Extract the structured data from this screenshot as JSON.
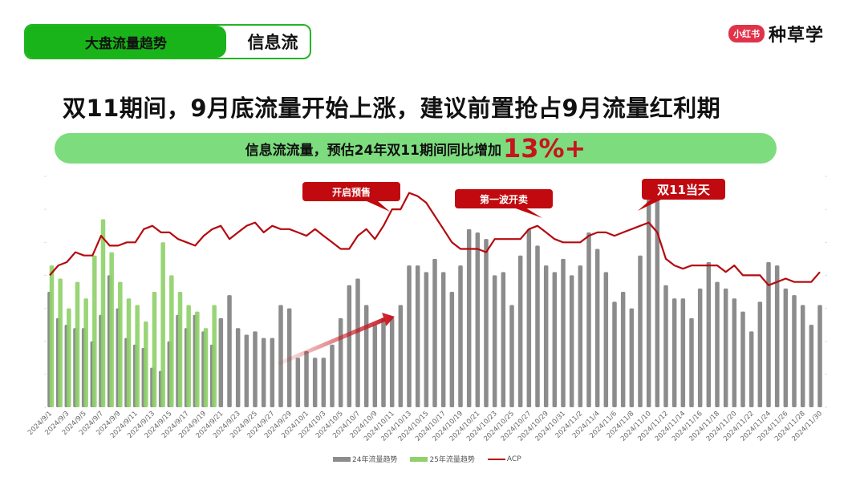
{
  "header": {
    "tabs": [
      {
        "label": "大盘流量趋势",
        "active": true
      },
      {
        "label": "信息流",
        "active": false
      }
    ],
    "brand": {
      "badge": "小红书",
      "name": "种草学",
      "badge_color": "#e0334a"
    }
  },
  "headline": "双11期间，9月底流量开始上涨，建议前置抢占9月流量红利期",
  "banner": {
    "text": "信息流流量，预估24年双11期间同比增加",
    "highlight": "13%+",
    "highlight_color": "#c8141e",
    "background": "#7ddc7e"
  },
  "callouts": {
    "presale": "开启预售",
    "first_wave": "第一波开卖",
    "double11": "双11当天"
  },
  "legend": {
    "s24": "24年流量趋势",
    "s25": "25年流量趋势",
    "acp": "ACP"
  },
  "colors": {
    "s24": "#8c8c8c",
    "s25": "#8fd16a",
    "acp": "#b5090f",
    "arrow": "#c8141e"
  },
  "chart_data": {
    "type": "bar",
    "title": "",
    "xlabel": "",
    "ylabel": "",
    "ylim": [
      0,
      70
    ],
    "grid": false,
    "legend_position": "bottom",
    "categories": [
      "2024/9/1",
      "2024/9/2",
      "2024/9/3",
      "2024/9/4",
      "2024/9/5",
      "2024/9/6",
      "2024/9/7",
      "2024/9/8",
      "2024/9/9",
      "2024/9/10",
      "2024/9/11",
      "2024/9/12",
      "2024/9/13",
      "2024/9/14",
      "2024/9/15",
      "2024/9/16",
      "2024/9/17",
      "2024/9/18",
      "2024/9/19",
      "2024/9/20",
      "2024/9/21",
      "2024/9/22",
      "2024/9/23",
      "2024/9/24",
      "2024/9/25",
      "2024/9/26",
      "2024/9/27",
      "2024/9/28",
      "2024/9/29",
      "2024/9/30",
      "2024/10/1",
      "2024/10/2",
      "2024/10/3",
      "2024/10/4",
      "2024/10/5",
      "2024/10/6",
      "2024/10/7",
      "2024/10/8",
      "2024/10/9",
      "2024/10/10",
      "2024/10/11",
      "2024/10/12",
      "2024/10/13",
      "2024/10/14",
      "2024/10/15",
      "2024/10/16",
      "2024/10/17",
      "2024/10/18",
      "2024/10/19",
      "2024/10/20",
      "2024/10/21",
      "2024/10/22",
      "2024/10/23",
      "2024/10/24",
      "2024/10/25",
      "2024/10/26",
      "2024/10/27",
      "2024/10/28",
      "2024/10/29",
      "2024/10/30",
      "2024/10/31",
      "2024/11/1",
      "2024/11/2",
      "2024/11/3",
      "2024/11/4",
      "2024/11/5",
      "2024/11/6",
      "2024/11/7",
      "2024/11/8",
      "2024/11/9",
      "2024/11/10",
      "2024/11/11",
      "2024/11/12",
      "2024/11/13",
      "2024/11/14",
      "2024/11/15",
      "2024/11/16",
      "2024/11/17",
      "2024/11/18",
      "2024/11/19",
      "2024/11/20",
      "2024/11/21",
      "2024/11/22",
      "2024/11/23",
      "2024/11/24",
      "2024/11/25",
      "2024/11/26",
      "2024/11/27",
      "2024/11/28",
      "2024/11/29",
      "2024/11/30"
    ],
    "tick_labels": [
      "2024/9/1",
      "2024/9/3",
      "2024/9/5",
      "2024/9/7",
      "2024/9/9",
      "2024/9/11",
      "2024/9/13",
      "2024/9/15",
      "2024/9/17",
      "2024/9/19",
      "2024/9/21",
      "2024/9/23",
      "2024/9/25",
      "2024/9/27",
      "2024/9/29",
      "2024/10/1",
      "2024/10/3",
      "2024/10/5",
      "2024/10/7",
      "2024/10/9",
      "2024/10/11",
      "2024/10/13",
      "2024/10/15",
      "2024/10/17",
      "2024/10/19",
      "2024/10/21",
      "2024/10/23",
      "2024/10/25",
      "2024/10/27",
      "2024/10/29",
      "2024/10/31",
      "2024/11/2",
      "2024/11/4",
      "2024/11/6",
      "2024/11/8",
      "2024/11/10",
      "2024/11/12",
      "2024/11/14",
      "2024/11/16",
      "2024/11/18",
      "2024/11/20",
      "2024/11/22",
      "2024/11/24",
      "2024/11/26",
      "2024/11/28",
      "2024/11/30"
    ],
    "series": [
      {
        "name": "24年流量趋势",
        "type": "bar",
        "values": [
          35,
          27,
          25,
          24,
          24,
          20,
          28,
          40,
          30,
          21,
          19,
          18,
          12,
          11,
          20,
          28,
          24,
          28,
          23,
          19,
          27,
          34,
          24,
          22,
          23,
          21,
          21,
          31,
          30,
          15,
          17,
          15,
          15,
          19,
          27,
          37,
          39,
          31,
          25,
          27,
          27,
          31,
          43,
          43,
          41,
          45,
          41,
          35,
          43,
          54,
          53,
          51,
          40,
          41,
          31,
          46,
          54,
          49,
          43,
          41,
          45,
          40,
          43,
          53,
          48,
          41,
          32,
          35,
          30,
          46,
          63,
          63,
          37,
          33,
          33,
          27,
          36,
          44,
          38,
          36,
          33,
          29,
          23,
          32,
          44,
          43,
          36,
          34,
          31,
          25,
          31
        ]
      },
      {
        "name": "25年流量趋势",
        "type": "bar",
        "values": [
          43,
          39,
          30,
          38,
          33,
          46,
          57,
          47,
          38,
          33,
          31,
          26,
          35,
          50,
          40,
          35,
          31,
          29,
          24,
          31
        ]
      },
      {
        "name": "ACP",
        "type": "line",
        "values": [
          40,
          43,
          44,
          47,
          46,
          46,
          52,
          49,
          49,
          50,
          50,
          54,
          55,
          53,
          53,
          51,
          50,
          49,
          52,
          54,
          55,
          51,
          53,
          55,
          56,
          53,
          55,
          54,
          54,
          53,
          52,
          54,
          52,
          50,
          48,
          48,
          52,
          54,
          51,
          55,
          60,
          60,
          65,
          64,
          62,
          58,
          54,
          50,
          48,
          48,
          48,
          47,
          51,
          51,
          51,
          51,
          54,
          55,
          53,
          51,
          50,
          50,
          50,
          52,
          53,
          53,
          52,
          53,
          54,
          55,
          56,
          53,
          45,
          43,
          42,
          43,
          43,
          43,
          43,
          41,
          43,
          40,
          40,
          40,
          37,
          38,
          39,
          38,
          38,
          38,
          41
        ]
      }
    ],
    "annotations": [
      {
        "text": "开启预售",
        "near": "2024/10/12"
      },
      {
        "text": "第一波开卖",
        "near": "2024/10/28"
      },
      {
        "text": "双11当天",
        "near": "2024/11/11"
      },
      {
        "text": "trend-arrow",
        "from": "2024/9/29",
        "to": "2024/10/12"
      }
    ]
  }
}
